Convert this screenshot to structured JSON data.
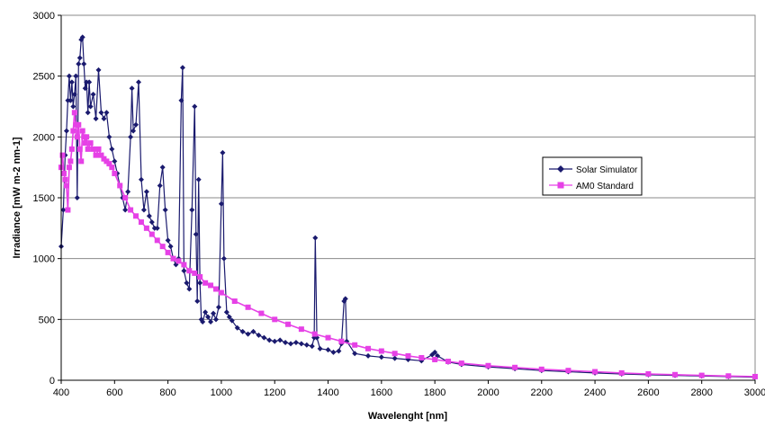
{
  "chart_data": {
    "type": "line",
    "xlabel": "Wavelenght [nm]",
    "ylabel": "Irradiance [mW m-2 nm-1]",
    "xlim": [
      400,
      3000
    ],
    "ylim": [
      0,
      3000
    ],
    "x_ticks": [
      "400",
      "600",
      "800",
      "1000",
      "1200",
      "1400",
      "1600",
      "1800",
      "2000",
      "2200",
      "2400",
      "2600",
      "2800",
      "3000"
    ],
    "y_ticks": [
      "0",
      "500",
      "1000",
      "1500",
      "2000",
      "2500",
      "3000"
    ],
    "grid": "horizontal",
    "legend_position": "right",
    "series": [
      {
        "name": "Solar Simulator",
        "color": "#1a1a6e",
        "marker": "diamond",
        "points": [
          [
            400,
            1100
          ],
          [
            408,
            1400
          ],
          [
            415,
            1850
          ],
          [
            420,
            2050
          ],
          [
            425,
            2300
          ],
          [
            430,
            2500
          ],
          [
            435,
            2300
          ],
          [
            440,
            2450
          ],
          [
            445,
            2250
          ],
          [
            450,
            2350
          ],
          [
            455,
            2500
          ],
          [
            460,
            1500
          ],
          [
            465,
            2600
          ],
          [
            470,
            2650
          ],
          [
            475,
            2800
          ],
          [
            480,
            2820
          ],
          [
            485,
            2600
          ],
          [
            490,
            2400
          ],
          [
            495,
            2450
          ],
          [
            500,
            2200
          ],
          [
            505,
            2450
          ],
          [
            510,
            2250
          ],
          [
            520,
            2350
          ],
          [
            530,
            2150
          ],
          [
            540,
            2550
          ],
          [
            550,
            2200
          ],
          [
            560,
            2150
          ],
          [
            570,
            2200
          ],
          [
            580,
            2000
          ],
          [
            590,
            1900
          ],
          [
            600,
            1800
          ],
          [
            610,
            1700
          ],
          [
            620,
            1600
          ],
          [
            630,
            1500
          ],
          [
            640,
            1400
          ],
          [
            650,
            1550
          ],
          [
            660,
            2000
          ],
          [
            665,
            2400
          ],
          [
            670,
            2050
          ],
          [
            680,
            2100
          ],
          [
            690,
            2450
          ],
          [
            700,
            1650
          ],
          [
            710,
            1400
          ],
          [
            720,
            1550
          ],
          [
            730,
            1350
          ],
          [
            740,
            1300
          ],
          [
            750,
            1250
          ],
          [
            760,
            1250
          ],
          [
            770,
            1600
          ],
          [
            780,
            1750
          ],
          [
            790,
            1400
          ],
          [
            800,
            1150
          ],
          [
            810,
            1100
          ],
          [
            820,
            1000
          ],
          [
            830,
            950
          ],
          [
            840,
            1000
          ],
          [
            850,
            2300
          ],
          [
            855,
            2570
          ],
          [
            860,
            900
          ],
          [
            870,
            800
          ],
          [
            880,
            750
          ],
          [
            890,
            1400
          ],
          [
            900,
            2250
          ],
          [
            905,
            1200
          ],
          [
            910,
            650
          ],
          [
            915,
            1650
          ],
          [
            920,
            800
          ],
          [
            925,
            500
          ],
          [
            930,
            480
          ],
          [
            940,
            560
          ],
          [
            950,
            520
          ],
          [
            960,
            480
          ],
          [
            970,
            550
          ],
          [
            980,
            500
          ],
          [
            990,
            600
          ],
          [
            1000,
            1450
          ],
          [
            1005,
            1870
          ],
          [
            1010,
            1000
          ],
          [
            1020,
            560
          ],
          [
            1030,
            520
          ],
          [
            1040,
            490
          ],
          [
            1060,
            430
          ],
          [
            1080,
            400
          ],
          [
            1100,
            380
          ],
          [
            1120,
            400
          ],
          [
            1140,
            370
          ],
          [
            1160,
            350
          ],
          [
            1180,
            330
          ],
          [
            1200,
            320
          ],
          [
            1220,
            330
          ],
          [
            1240,
            310
          ],
          [
            1260,
            300
          ],
          [
            1280,
            310
          ],
          [
            1300,
            300
          ],
          [
            1320,
            290
          ],
          [
            1340,
            280
          ],
          [
            1348,
            350
          ],
          [
            1352,
            1170
          ],
          [
            1358,
            350
          ],
          [
            1370,
            260
          ],
          [
            1400,
            250
          ],
          [
            1420,
            230
          ],
          [
            1440,
            240
          ],
          [
            1450,
            300
          ],
          [
            1460,
            650
          ],
          [
            1465,
            670
          ],
          [
            1470,
            320
          ],
          [
            1500,
            220
          ],
          [
            1550,
            200
          ],
          [
            1600,
            190
          ],
          [
            1650,
            180
          ],
          [
            1700,
            170
          ],
          [
            1750,
            160
          ],
          [
            1790,
            210
          ],
          [
            1800,
            230
          ],
          [
            1810,
            200
          ],
          [
            1850,
            150
          ],
          [
            1900,
            130
          ],
          [
            2000,
            110
          ],
          [
            2100,
            95
          ],
          [
            2200,
            80
          ],
          [
            2300,
            70
          ],
          [
            2400,
            60
          ],
          [
            2500,
            52
          ],
          [
            2600,
            45
          ],
          [
            2700,
            40
          ],
          [
            2800,
            35
          ],
          [
            2900,
            30
          ],
          [
            3000,
            25
          ]
        ]
      },
      {
        "name": "AM0 Standard",
        "color": "#e641e6",
        "marker": "square",
        "points": [
          [
            400,
            1750
          ],
          [
            405,
            1850
          ],
          [
            410,
            1700
          ],
          [
            415,
            1650
          ],
          [
            420,
            1600
          ],
          [
            425,
            1400
          ],
          [
            430,
            1750
          ],
          [
            435,
            1800
          ],
          [
            440,
            1900
          ],
          [
            445,
            2050
          ],
          [
            450,
            2200
          ],
          [
            455,
            2100
          ],
          [
            460,
            2000
          ],
          [
            465,
            2100
          ],
          [
            470,
            1900
          ],
          [
            475,
            1800
          ],
          [
            480,
            2050
          ],
          [
            485,
            2000
          ],
          [
            490,
            1950
          ],
          [
            495,
            2000
          ],
          [
            500,
            1900
          ],
          [
            510,
            1950
          ],
          [
            520,
            1900
          ],
          [
            530,
            1850
          ],
          [
            540,
            1900
          ],
          [
            550,
            1850
          ],
          [
            560,
            1820
          ],
          [
            570,
            1800
          ],
          [
            580,
            1780
          ],
          [
            590,
            1750
          ],
          [
            600,
            1700
          ],
          [
            620,
            1600
          ],
          [
            640,
            1500
          ],
          [
            660,
            1400
          ],
          [
            680,
            1350
          ],
          [
            700,
            1300
          ],
          [
            720,
            1250
          ],
          [
            740,
            1200
          ],
          [
            760,
            1150
          ],
          [
            780,
            1100
          ],
          [
            800,
            1050
          ],
          [
            820,
            1000
          ],
          [
            840,
            980
          ],
          [
            860,
            950
          ],
          [
            880,
            900
          ],
          [
            900,
            880
          ],
          [
            920,
            850
          ],
          [
            940,
            800
          ],
          [
            960,
            780
          ],
          [
            980,
            750
          ],
          [
            1000,
            720
          ],
          [
            1050,
            650
          ],
          [
            1100,
            600
          ],
          [
            1150,
            550
          ],
          [
            1200,
            500
          ],
          [
            1250,
            460
          ],
          [
            1300,
            420
          ],
          [
            1350,
            380
          ],
          [
            1400,
            350
          ],
          [
            1450,
            320
          ],
          [
            1500,
            290
          ],
          [
            1550,
            260
          ],
          [
            1600,
            240
          ],
          [
            1650,
            220
          ],
          [
            1700,
            200
          ],
          [
            1750,
            185
          ],
          [
            1800,
            170
          ],
          [
            1850,
            155
          ],
          [
            1900,
            140
          ],
          [
            2000,
            120
          ],
          [
            2100,
            105
          ],
          [
            2200,
            90
          ],
          [
            2300,
            80
          ],
          [
            2400,
            70
          ],
          [
            2500,
            60
          ],
          [
            2600,
            52
          ],
          [
            2700,
            46
          ],
          [
            2800,
            40
          ],
          [
            2900,
            35
          ],
          [
            3000,
            30
          ]
        ]
      }
    ]
  }
}
